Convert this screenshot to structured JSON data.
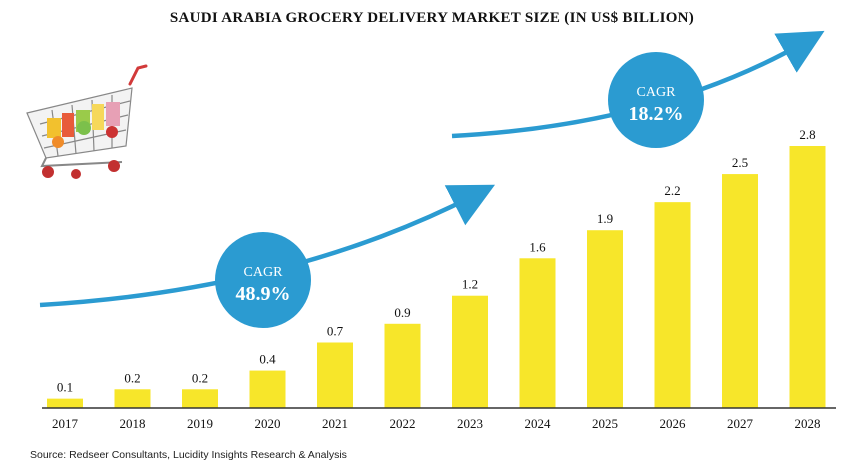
{
  "title": "SAUDI ARABIA GROCERY DELIVERY MARKET SIZE (IN US$ BILLION)",
  "source": "Source: Redseer Consultants, Lucidity Insights Research & Analysis",
  "colors": {
    "bar": "#f7e62a",
    "accent": "#2b9bd1",
    "text": "#111111",
    "axis": "#333333"
  },
  "chart_data": {
    "type": "bar",
    "title": "SAUDI ARABIA GROCERY DELIVERY MARKET SIZE (IN US$ BILLION)",
    "categories": [
      "2017",
      "2018",
      "2019",
      "2020",
      "2021",
      "2022",
      "2023",
      "2024",
      "2025",
      "2026",
      "2027",
      "2028"
    ],
    "values": [
      0.1,
      0.2,
      0.2,
      0.4,
      0.7,
      0.9,
      1.2,
      1.6,
      1.9,
      2.2,
      2.5,
      2.8
    ],
    "value_labels": [
      "0.1",
      "0.2",
      "0.2",
      "0.4",
      "0.7",
      "0.9",
      "1.2",
      "1.6",
      "1.9",
      "2.2",
      "2.5",
      "2.8"
    ],
    "xlabel": "",
    "ylabel": "",
    "ylim": [
      0,
      2.8
    ],
    "grid": false,
    "legend": "none",
    "annotations": [
      {
        "label": "CAGR",
        "value": "48.9%"
      },
      {
        "label": "CAGR",
        "value": "18.2%"
      }
    ]
  },
  "icons": [
    "shopping-cart-icon"
  ]
}
